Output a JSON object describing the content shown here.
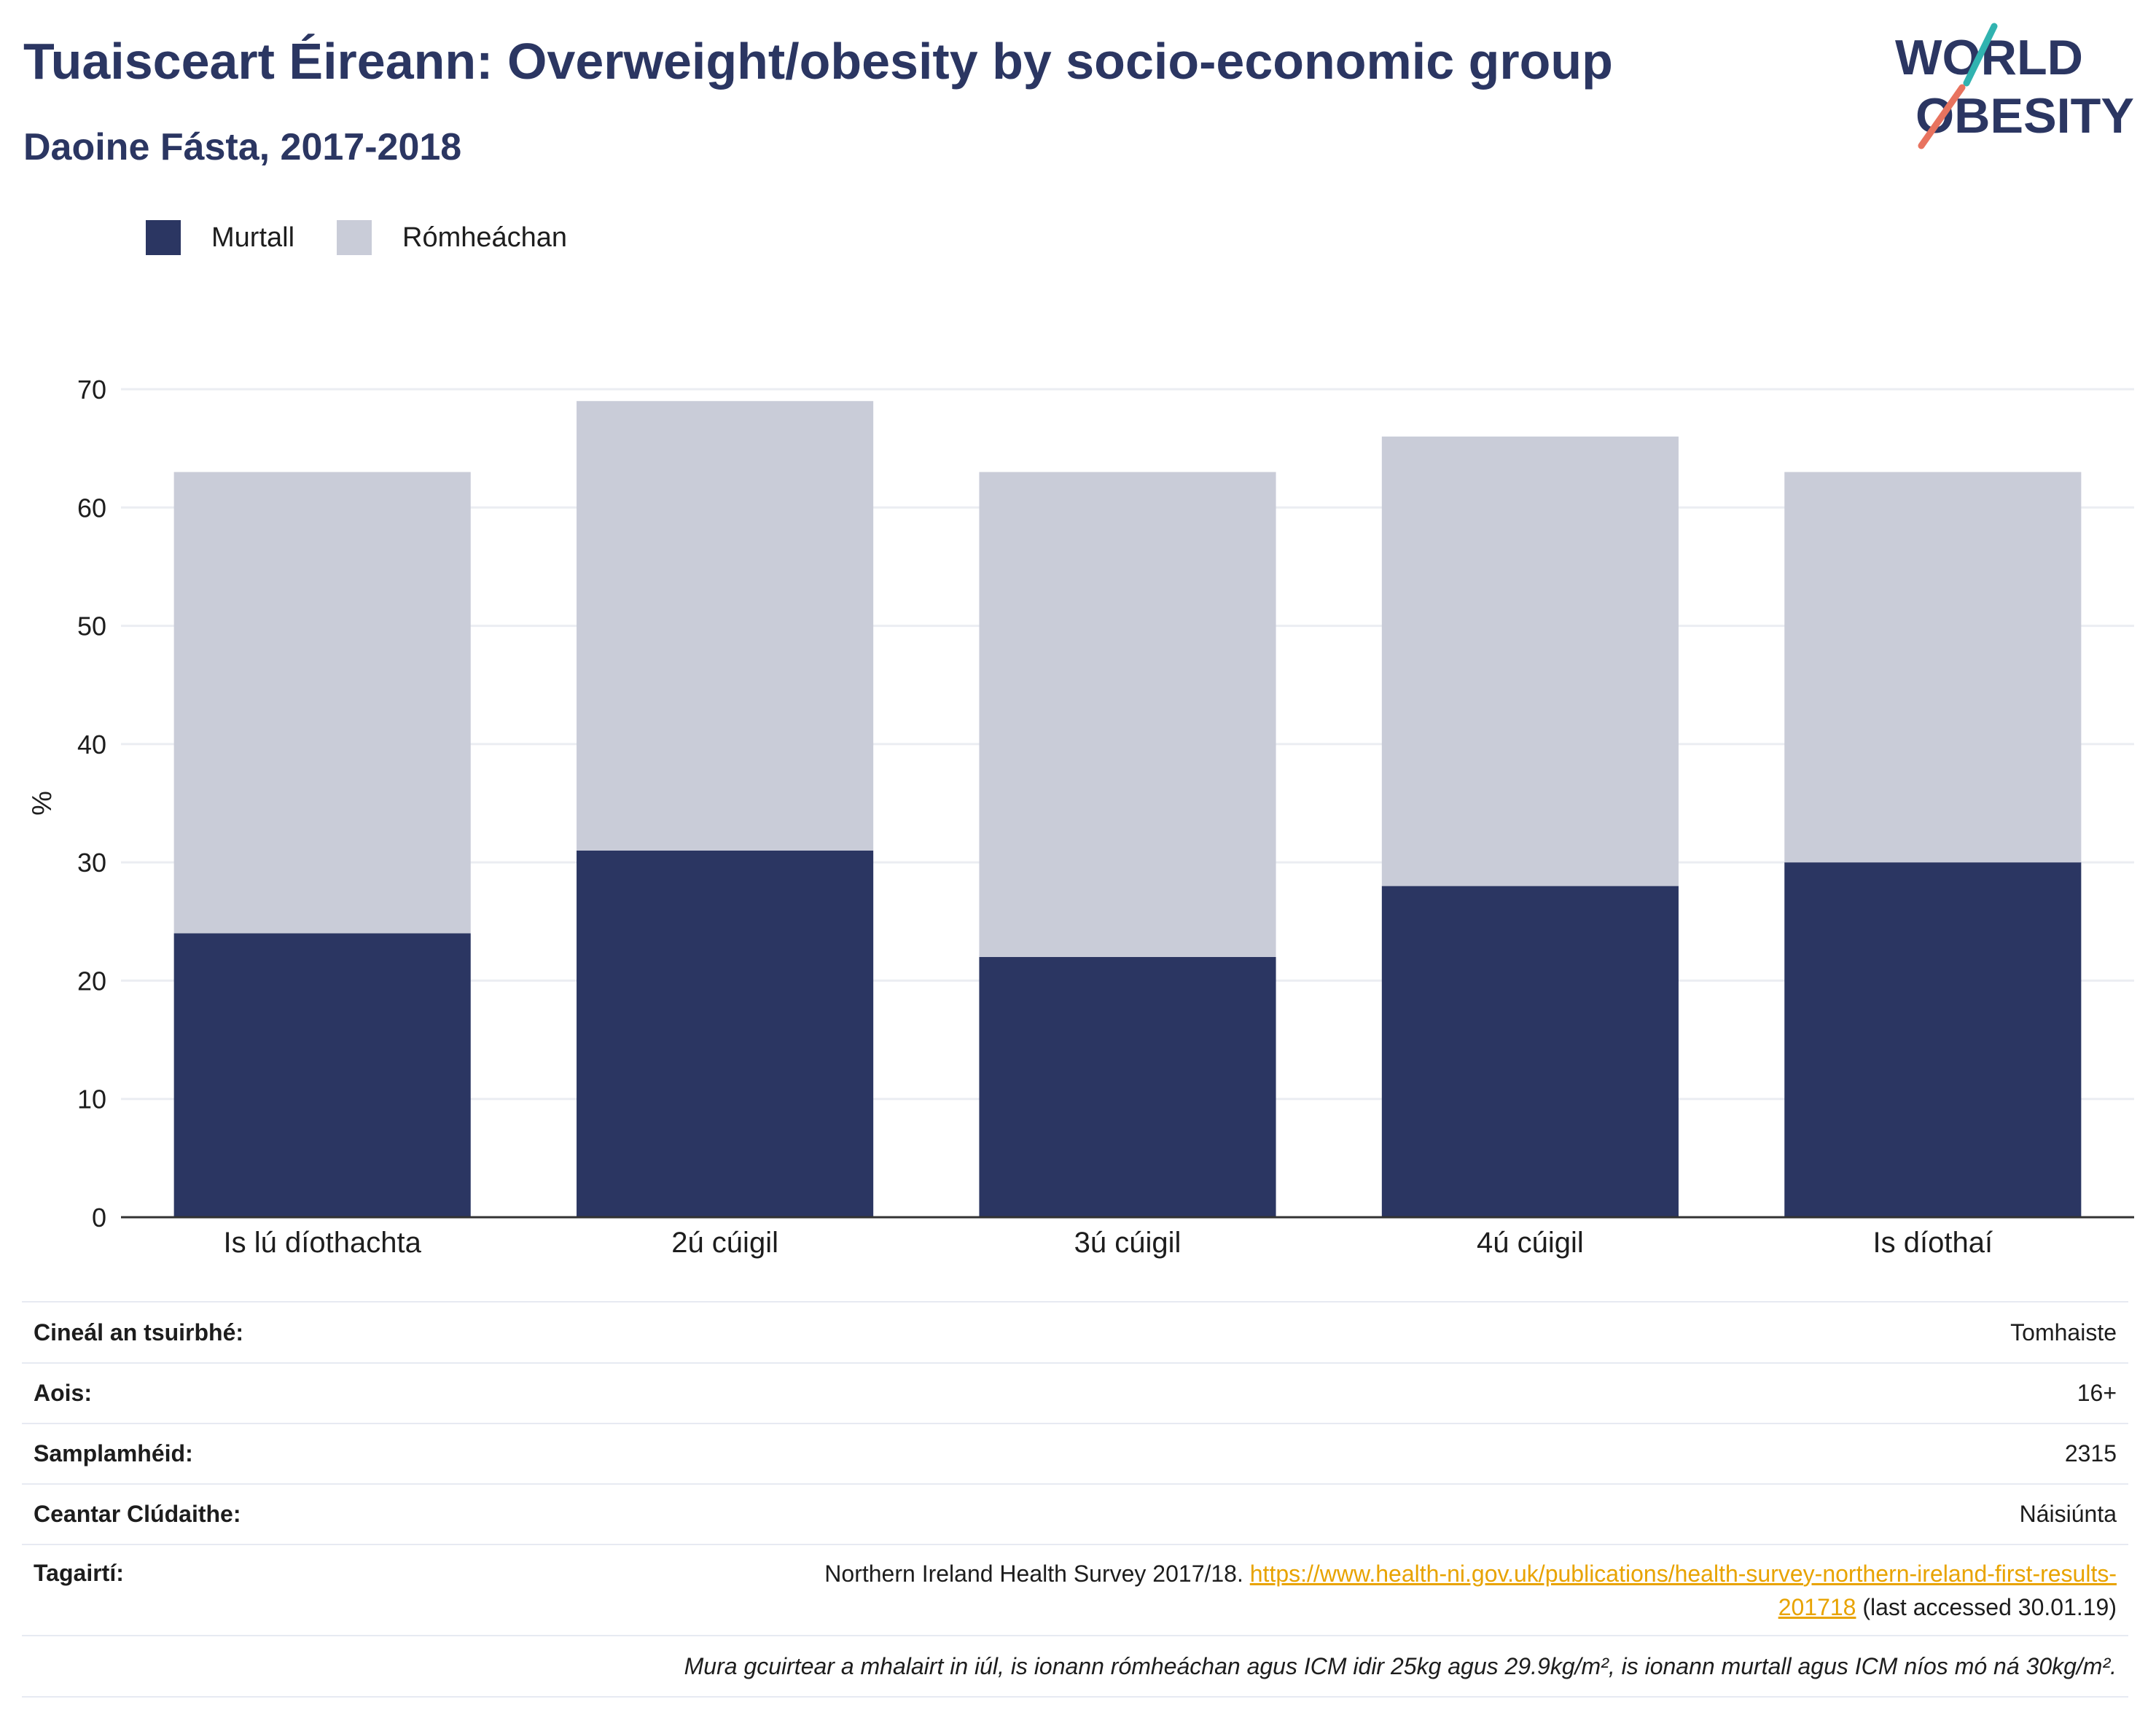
{
  "title": "Tuaisceart Éireann: Overweight/obesity by socio-economic group",
  "subtitle": "Daoine Fásta, 2017-2018",
  "logo": {
    "line1": "WORLD",
    "line2": "OBESITY"
  },
  "colors": {
    "obese": "#2b3662",
    "overweight": "#c9ccd8",
    "title": "#2b3662",
    "link": "#e8a300"
  },
  "chart_data": {
    "type": "bar",
    "stacked": true,
    "categories": [
      "Is lú díothachta",
      "2ú cúigil",
      "3ú cúigil",
      "4ú cúigil",
      "Is díothaí"
    ],
    "series": [
      {
        "name": "Murtall",
        "values": [
          24,
          31,
          22,
          28,
          30
        ],
        "color": "#2b3662"
      },
      {
        "name": "Rómheáchan",
        "values": [
          39,
          38,
          41,
          38,
          33
        ],
        "color": "#c9ccd8"
      }
    ],
    "xlabel": "",
    "ylabel": "%",
    "ylim": [
      0,
      70
    ],
    "yticks": [
      0,
      10,
      20,
      30,
      40,
      50,
      60,
      70
    ],
    "grid": true,
    "legend": "top-left"
  },
  "info": {
    "survey_type_label": "Cineál an tsuirbhé:",
    "survey_type_value": "Tomhaiste",
    "age_label": "Aois:",
    "age_value": "16+",
    "sample_label": "Samplamhéid:",
    "sample_value": "2315",
    "area_label": "Ceantar Clúdaithe:",
    "area_value": "Náisiúnta",
    "refs_label": "Tagairtí:",
    "refs_text": "Northern Ireland Health Survey 2017/18.",
    "refs_link_1": "https://www.health-ni.gov.uk/publications/health-survey-northern-ireland-first-results-",
    "refs_link_2": "201718",
    "refs_suffix": "(last accessed 30.01.19)",
    "note": "Mura gcuirtear a mhalairt in iúl, is ionann rómheáchan agus ICM idir 25kg agus 29.9kg/m², is ionann murtall agus ICM níos mó ná 30kg/m²."
  }
}
